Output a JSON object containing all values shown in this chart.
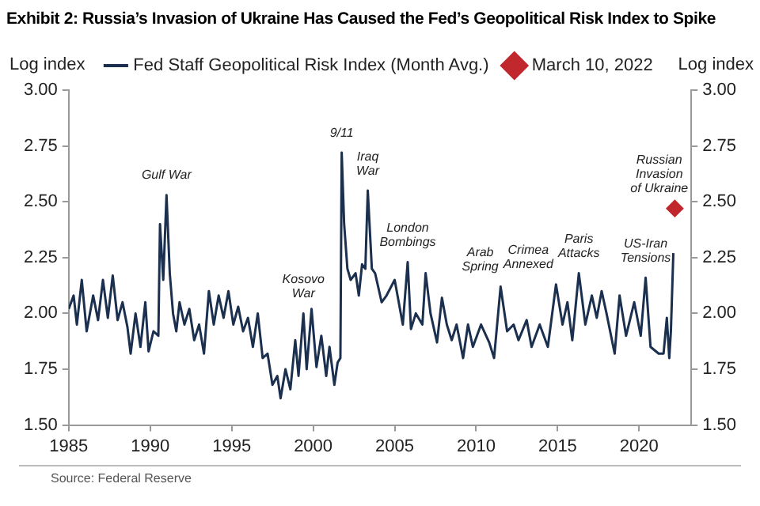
{
  "chart_data": {
    "type": "line",
    "title": "Exhibit 2: Russia’s Invasion of Ukraine Has Caused the Fed’s Geopolitical Risk Index to Spike",
    "ylabel": "Log index",
    "y2label": "Log index",
    "xlim": [
      1985,
      2023.2
    ],
    "xticks": [
      1985,
      1990,
      1995,
      2000,
      2005,
      2010,
      2015,
      2020
    ],
    "ylim": [
      1.5,
      3.0
    ],
    "yticks": [
      {
        "value": 1.5,
        "label": "1.50"
      },
      {
        "value": 1.75,
        "label": "1.75"
      },
      {
        "value": 2.0,
        "label": "2.00"
      },
      {
        "value": 2.25,
        "label": "2.25"
      },
      {
        "value": 2.5,
        "label": "2.50"
      },
      {
        "value": 2.75,
        "label": "2.75"
      },
      {
        "value": 3.0,
        "label": "3.00"
      }
    ],
    "y2lim": [
      1.5,
      3.0
    ],
    "y2ticks": [
      {
        "value": 1.5,
        "label": "1.50"
      },
      {
        "value": 1.75,
        "label": "1.75"
      },
      {
        "value": 2.0,
        "label": "2.00"
      },
      {
        "value": 2.25,
        "label": "2.25"
      },
      {
        "value": 2.5,
        "label": "2.50"
      },
      {
        "value": 2.75,
        "label": "2.75"
      },
      {
        "value": 3.0,
        "label": "3.00"
      }
    ],
    "grid": false,
    "legend": "top",
    "line_style": "solid",
    "marker": "none",
    "series": [
      {
        "name": "Fed Staff Geopolitical Risk Index (Month Avg.)",
        "color": "#1b2f4f",
        "x": [
          1985.0,
          1985.3,
          1985.5,
          1985.8,
          1986.1,
          1986.5,
          1986.8,
          1987.1,
          1987.4,
          1987.7,
          1988.0,
          1988.3,
          1988.6,
          1988.8,
          1989.1,
          1989.4,
          1989.7,
          1989.9,
          1990.2,
          1990.5,
          1990.6,
          1990.8,
          1991.0,
          1991.2,
          1991.4,
          1991.6,
          1991.8,
          1992.1,
          1992.4,
          1992.7,
          1993.0,
          1993.3,
          1993.6,
          1993.9,
          1994.2,
          1994.5,
          1994.8,
          1995.1,
          1995.4,
          1995.7,
          1996.0,
          1996.3,
          1996.6,
          1996.9,
          1997.2,
          1997.5,
          1997.8,
          1998.0,
          1998.3,
          1998.6,
          1998.9,
          1999.1,
          1999.4,
          1999.6,
          1999.9,
          2000.2,
          2000.5,
          2000.8,
          2001.0,
          2001.3,
          2001.5,
          2001.67,
          2001.75,
          2001.9,
          2002.1,
          2002.3,
          2002.6,
          2002.8,
          2003.0,
          2003.2,
          2003.35,
          2003.6,
          2003.8,
          2004.2,
          2004.5,
          2005.0,
          2005.5,
          2005.8,
          2006.0,
          2006.3,
          2006.7,
          2006.9,
          2007.2,
          2007.6,
          2007.9,
          2008.2,
          2008.5,
          2008.8,
          2009.2,
          2009.5,
          2009.8,
          2010.3,
          2010.8,
          2011.1,
          2011.5,
          2011.9,
          2012.3,
          2012.6,
          2013.1,
          2013.4,
          2013.9,
          2014.4,
          2014.9,
          2015.3,
          2015.6,
          2015.9,
          2016.3,
          2016.7,
          2017.1,
          2017.4,
          2017.7,
          2018.0,
          2018.5,
          2018.8,
          2019.2,
          2019.7,
          2020.1,
          2020.4,
          2020.7,
          2021.2,
          2021.5,
          2021.7,
          2021.85,
          2021.95,
          2022.1
        ],
        "values": [
          2.02,
          2.08,
          1.95,
          2.15,
          1.92,
          2.08,
          1.97,
          2.15,
          1.98,
          2.17,
          1.97,
          2.05,
          1.94,
          1.82,
          2.0,
          1.85,
          2.05,
          1.83,
          1.92,
          1.9,
          2.4,
          2.15,
          2.53,
          2.18,
          2.0,
          1.92,
          2.05,
          1.95,
          2.02,
          1.88,
          1.95,
          1.82,
          2.1,
          1.95,
          2.08,
          1.98,
          2.1,
          1.95,
          2.03,
          1.92,
          1.98,
          1.85,
          2.0,
          1.8,
          1.82,
          1.68,
          1.72,
          1.62,
          1.75,
          1.66,
          1.88,
          1.72,
          2.0,
          1.75,
          2.02,
          1.76,
          1.9,
          1.72,
          1.85,
          1.68,
          1.78,
          1.8,
          2.72,
          2.4,
          2.2,
          2.15,
          2.18,
          2.08,
          2.22,
          2.2,
          2.55,
          2.2,
          2.18,
          2.05,
          2.08,
          2.15,
          1.95,
          2.23,
          1.93,
          2.0,
          1.95,
          2.18,
          2.0,
          1.87,
          2.07,
          1.95,
          1.88,
          1.95,
          1.8,
          1.95,
          1.85,
          1.95,
          1.87,
          1.8,
          2.12,
          1.92,
          1.95,
          1.88,
          1.97,
          1.85,
          1.95,
          1.85,
          2.13,
          1.95,
          2.05,
          1.88,
          2.18,
          1.95,
          2.08,
          1.98,
          2.1,
          2.0,
          1.82,
          2.08,
          1.9,
          2.05,
          1.9,
          2.16,
          1.85,
          1.82,
          1.82,
          1.98,
          1.8,
          1.92,
          2.27
        ]
      },
      {
        "name": "March 10, 2022",
        "type": "scatter",
        "marker": "diamond",
        "color": "#c0282d",
        "x": [
          2022.19
        ],
        "values": [
          2.47
        ]
      }
    ],
    "annotations": [
      {
        "text": "Gulf War",
        "x": 1991.0,
        "y": 2.53
      },
      {
        "text": "Kosovo\nWar",
        "x": 1999.4,
        "y": 2.0
      },
      {
        "text": "9/11",
        "x": 2001.75,
        "y": 2.72
      },
      {
        "text": "Iraq\nWar",
        "x": 2003.35,
        "y": 2.55
      },
      {
        "text": "London\nBombings",
        "x": 2005.8,
        "y": 2.23
      },
      {
        "text": "Arab\nSpring",
        "x": 2011.5,
        "y": 2.12
      },
      {
        "text": "Crimea\nAnnexed",
        "x": 2014.9,
        "y": 2.13
      },
      {
        "text": "Paris\nAttacks",
        "x": 2016.3,
        "y": 2.18
      },
      {
        "text": "US-Iran\nTensions",
        "x": 2020.4,
        "y": 2.16
      },
      {
        "text": "Russian\nInvasion\nof Ukraine",
        "x": 2022.19,
        "y": 2.47
      },
      "Source: Federal Reserve"
    ]
  }
}
